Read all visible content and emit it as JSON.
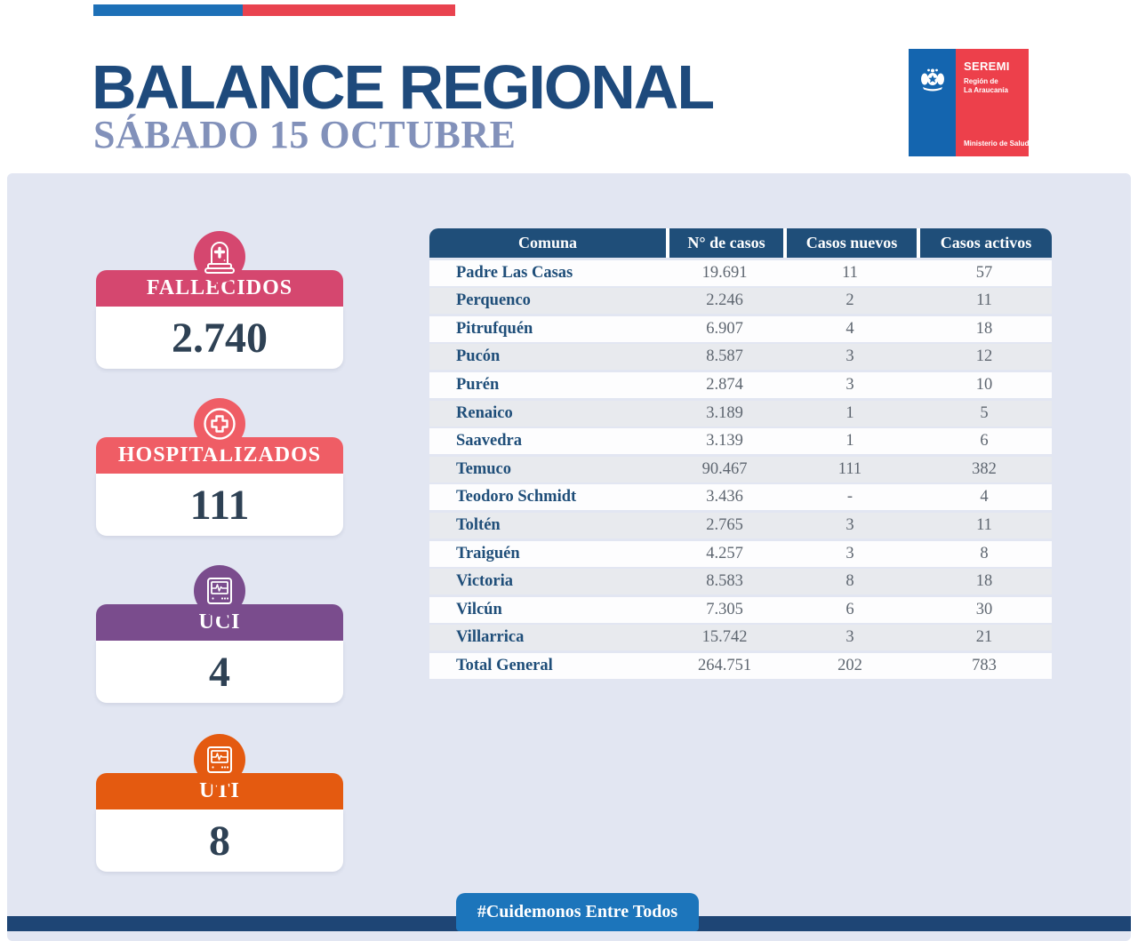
{
  "colors": {
    "flag_blue": "#1d70b7",
    "flag_red": "#e9434f",
    "title_navy": "#1e4a7c",
    "subtitle_blue_gray": "#8291ba",
    "background_lavender": "#e2e6f2",
    "table_header_navy": "#1f4e79",
    "footer_bar_navy": "#1e4575",
    "badge_blue": "#1c75bb"
  },
  "header": {
    "title": "BALANCE REGIONAL",
    "subtitle": "SÁBADO 15 OCTUBRE",
    "logo": {
      "org": "SEREMI",
      "region_line1": "Región de",
      "region_line2": "La Araucanía",
      "ministry": "Ministerio de Salud"
    }
  },
  "stats": [
    {
      "label": "FALLECIDOS",
      "value": "2.740",
      "color": "#d5476f",
      "icon": "tombstone-icon"
    },
    {
      "label": "HOSPITALIZADOS",
      "value": "111",
      "color": "#ef5d65",
      "icon": "medical-cross-icon"
    },
    {
      "label": "UCI",
      "value": "4",
      "color": "#7a4c8d",
      "icon": "vitals-monitor-icon"
    },
    {
      "label": "UTI",
      "value": "8",
      "color": "#e45a10",
      "icon": "vitals-monitor-icon"
    }
  ],
  "table": {
    "headers": [
      "Comuna",
      "N° de casos",
      "Casos nuevos",
      "Casos activos"
    ],
    "rows": [
      [
        "Padre Las Casas",
        "19.691",
        "11",
        "57"
      ],
      [
        "Perquenco",
        "2.246",
        "2",
        "11"
      ],
      [
        "Pitrufquén",
        "6.907",
        "4",
        "18"
      ],
      [
        "Pucón",
        "8.587",
        "3",
        "12"
      ],
      [
        "Purén",
        "2.874",
        "3",
        "10"
      ],
      [
        "Renaico",
        "3.189",
        "1",
        "5"
      ],
      [
        "Saavedra",
        "3.139",
        "1",
        "6"
      ],
      [
        "Temuco",
        "90.467",
        "111",
        "382"
      ],
      [
        "Teodoro Schmidt",
        "3.436",
        "-",
        "4"
      ],
      [
        "Toltén",
        "2.765",
        "3",
        "11"
      ],
      [
        "Traiguén",
        "4.257",
        "3",
        "8"
      ],
      [
        "Victoria",
        "8.583",
        "8",
        "18"
      ],
      [
        "Vilcún",
        "7.305",
        "6",
        "30"
      ],
      [
        "Villarrica",
        "15.742",
        "3",
        "21"
      ],
      [
        "Total General",
        "264.751",
        "202",
        "783"
      ]
    ]
  },
  "footer": {
    "hashtag": "#Cuidemonos Entre Todos"
  }
}
